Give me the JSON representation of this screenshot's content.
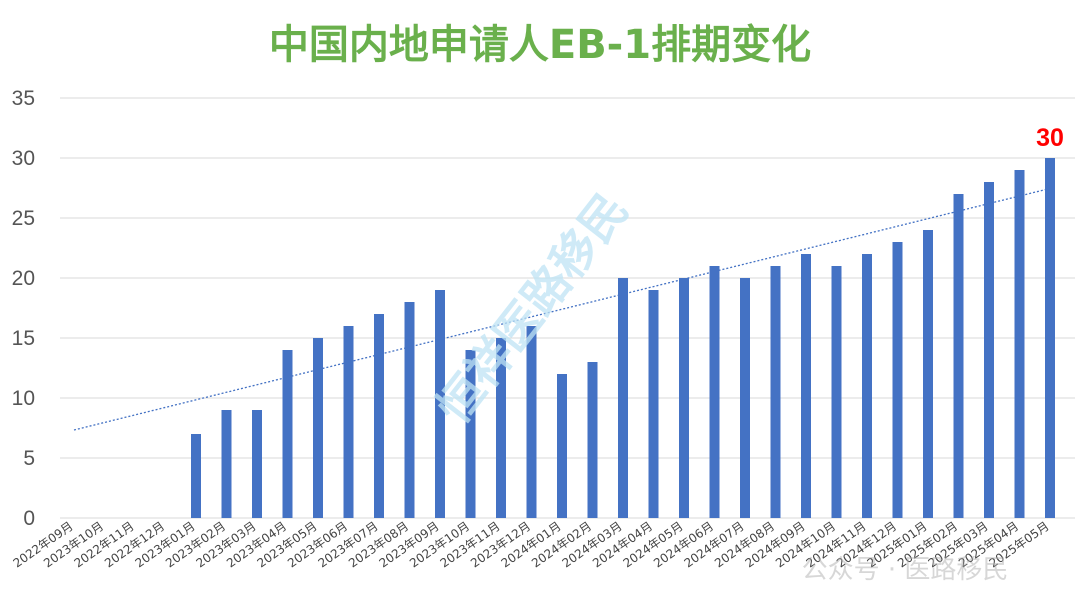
{
  "chart_data": {
    "type": "bar",
    "title": "中国内地申请人EB-1排期变化",
    "xlabel": "",
    "ylabel": "",
    "ylim": [
      0,
      35
    ],
    "yticks": [
      0,
      5,
      10,
      15,
      20,
      25,
      30,
      35
    ],
    "grid": true,
    "legend": "none",
    "trendline": {
      "type": "linear",
      "style": "dotted"
    },
    "categories": [
      "2022年09月",
      "2023年10月",
      "2022年11月",
      "2022年12月",
      "2023年01月",
      "2023年02月",
      "2023年03月",
      "2023年04月",
      "2023年05月",
      "2023年06月",
      "2023年07月",
      "2023年08月",
      "2023年09月",
      "2023年10月",
      "2023年11月",
      "2023年12月",
      "2024年01月",
      "2024年02月",
      "2024年03月",
      "2024年04月",
      "2024年05月",
      "2024年06月",
      "2024年07月",
      "2024年08月",
      "2024年09月",
      "2024年10月",
      "2024年11月",
      "2024年12月",
      "2025年01月",
      "2025年02月",
      "2025年03月",
      "2025年04月",
      "2025年05月"
    ],
    "values": [
      null,
      null,
      null,
      null,
      7,
      9,
      9,
      14,
      15,
      16,
      17,
      18,
      19,
      14,
      15,
      16,
      12,
      13,
      20,
      19,
      20,
      21,
      20,
      21,
      22,
      21,
      22,
      23,
      24,
      27,
      28,
      29,
      30
    ],
    "data_labels": [
      {
        "index": 32,
        "text": "30"
      }
    ]
  },
  "watermark": {
    "text": "恒祥医路移民"
  },
  "footer_watermark": {
    "text": "公众号 · 医路移民"
  },
  "colors": {
    "title": "#6ab04c",
    "bar": "#4472c4",
    "trend": "#4472c4",
    "grid": "#d9d9d9",
    "label_highlight": "#ff0000",
    "watermark": "#bfe4f5"
  }
}
